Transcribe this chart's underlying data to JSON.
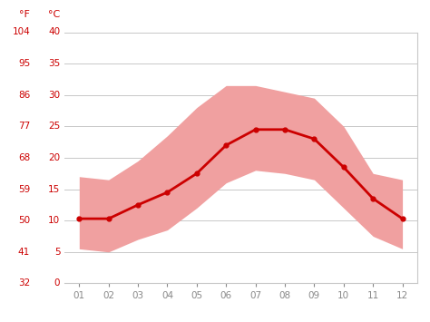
{
  "months": [
    1,
    2,
    3,
    4,
    5,
    6,
    7,
    8,
    9,
    10,
    11,
    12
  ],
  "month_labels": [
    "01",
    "02",
    "03",
    "04",
    "05",
    "06",
    "07",
    "08",
    "09",
    "10",
    "11",
    "12"
  ],
  "mean_temp_c": [
    10.3,
    10.3,
    12.5,
    14.5,
    17.5,
    22.0,
    24.5,
    24.5,
    23.0,
    18.5,
    13.5,
    10.3
  ],
  "max_temp_c": [
    17.0,
    16.5,
    19.5,
    23.5,
    28.0,
    31.5,
    31.5,
    30.5,
    29.5,
    25.0,
    17.5,
    16.5
  ],
  "min_temp_c": [
    5.5,
    5.0,
    7.0,
    8.5,
    12.0,
    16.0,
    18.0,
    17.5,
    16.5,
    12.0,
    7.5,
    5.5
  ],
  "yticks_c": [
    0,
    5,
    10,
    15,
    20,
    25,
    30,
    35,
    40
  ],
  "yticks_f": [
    32,
    41,
    50,
    59,
    68,
    77,
    86,
    95,
    104
  ],
  "ylim_c": [
    0,
    40
  ],
  "xlim": [
    0.5,
    12.5
  ],
  "line_color": "#cc0000",
  "band_color": "#f0a0a0",
  "band_alpha": 1.0,
  "background_color": "#ffffff",
  "grid_color": "#c8c8c8",
  "label_color_y": "#cc0000",
  "label_color_x": "#888888",
  "title_f": "°F",
  "title_c": "°C",
  "font_size_ticks": 7.5,
  "font_size_axis_labels": 8
}
